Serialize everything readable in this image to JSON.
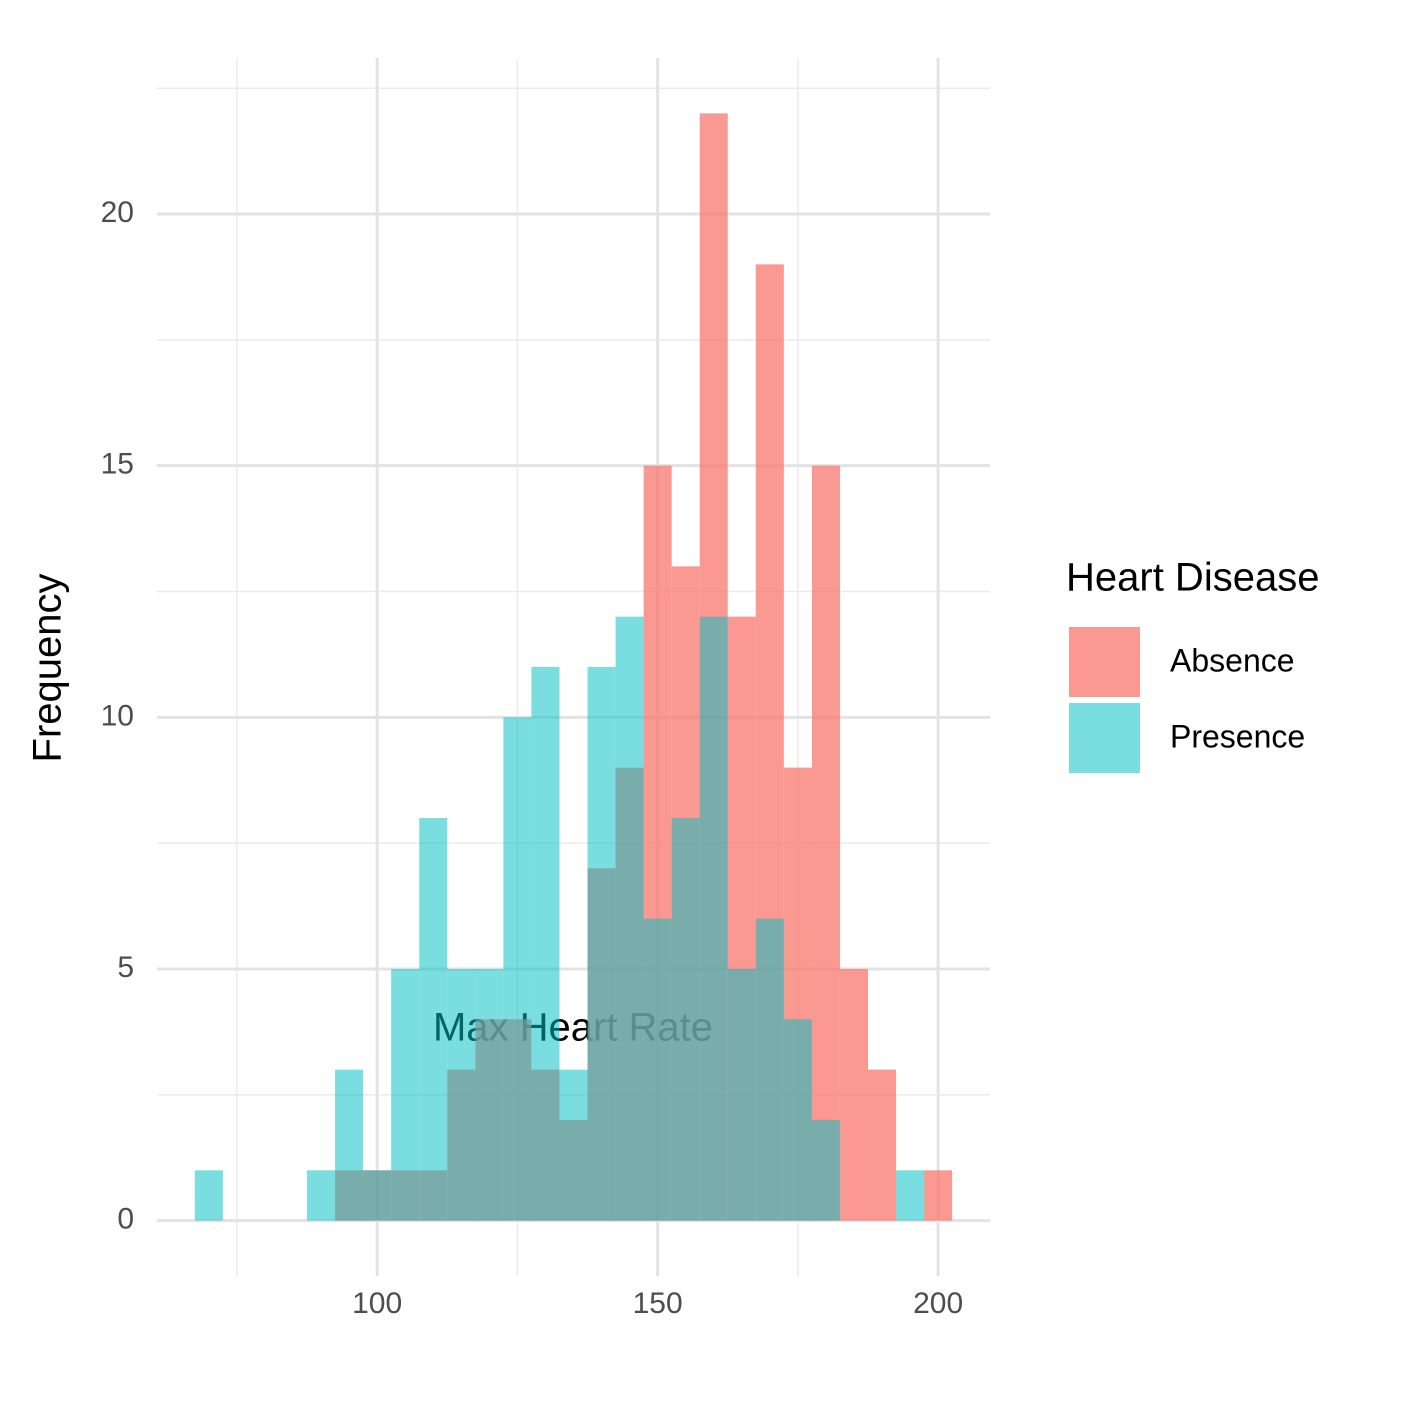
{
  "chart_data": {
    "type": "histogram",
    "x_label": "Max Heart Rate",
    "y_label": "Frequency",
    "legend_title": "Heart Disease",
    "legend_position": "right",
    "bins": [
      67.5,
      72.5,
      77.5,
      82.5,
      87.5,
      92.5,
      97.5,
      102.5,
      107.5,
      112.5,
      117.5,
      122.5,
      127.5,
      132.5,
      137.5,
      142.5,
      147.5,
      152.5,
      157.5,
      162.5,
      167.5,
      172.5,
      177.5,
      182.5,
      187.5,
      192.5,
      197.5,
      202.5
    ],
    "series": [
      {
        "name": "Absence",
        "color": "#F8766D",
        "values": [
          0,
          0,
          0,
          0,
          0,
          1,
          1,
          1,
          1,
          3,
          4,
          4,
          3,
          2,
          7,
          9,
          15,
          13,
          22,
          12,
          19,
          9,
          15,
          5,
          3,
          0,
          1
        ]
      },
      {
        "name": "Presence",
        "color": "#00BFC4",
        "values": [
          1,
          0,
          0,
          0,
          1,
          3,
          1,
          5,
          8,
          5,
          5,
          10,
          11,
          3,
          11,
          12,
          6,
          8,
          12,
          5,
          6,
          4,
          2,
          0,
          0,
          1,
          0
        ]
      }
    ],
    "xlim": [
      60.75,
      209.25
    ],
    "ylim": [
      -1.1,
      23.1
    ],
    "xticks": [
      100,
      150,
      200
    ],
    "yticks": [
      0,
      5,
      10,
      15,
      20
    ],
    "x_minor_ticks": [
      75,
      125,
      175
    ],
    "y_minor_ticks": [
      2.5,
      7.5,
      12.5,
      17.5,
      22.5
    ],
    "grid": true
  }
}
